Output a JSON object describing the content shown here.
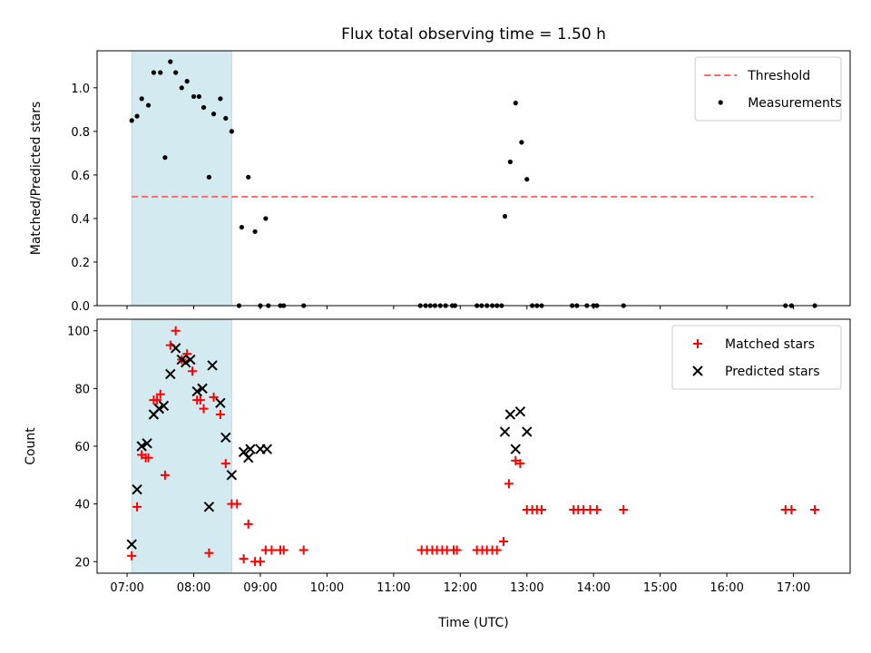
{
  "chart_data": {
    "title": "Flux total observing time = 1.50 h",
    "xlabel": "Time (UTC)",
    "xticks": [
      "07:00",
      "08:00",
      "09:00",
      "10:00",
      "11:00",
      "12:00",
      "13:00",
      "14:00",
      "15:00",
      "16:00",
      "17:00"
    ],
    "xlim": [
      6.55,
      17.85
    ],
    "highlight": {
      "x_start": 7.07,
      "x_end": 8.57,
      "color": "#d3eaf0"
    },
    "panels": [
      {
        "type": "scatter",
        "ylabel": "Matched/Predicted stars",
        "ylim": [
          0,
          1.17
        ],
        "yticks": [
          "0.0",
          "0.2",
          "0.4",
          "0.6",
          "0.8",
          "1.0"
        ],
        "legend_position": "top-right",
        "threshold": {
          "name": "Threshold",
          "y": 0.5,
          "x_start": 7.07,
          "x_end": 17.3,
          "color": "#ff6666"
        },
        "series": [
          {
            "name": "Measurements",
            "marker": "dot",
            "color": "#000000",
            "points": [
              [
                7.07,
                0.85
              ],
              [
                7.15,
                0.87
              ],
              [
                7.22,
                0.95
              ],
              [
                7.32,
                0.92
              ],
              [
                7.4,
                1.07
              ],
              [
                7.5,
                1.07
              ],
              [
                7.57,
                0.68
              ],
              [
                7.65,
                1.12
              ],
              [
                7.73,
                1.07
              ],
              [
                7.82,
                1.0
              ],
              [
                7.9,
                1.03
              ],
              [
                8.0,
                0.96
              ],
              [
                8.08,
                0.96
              ],
              [
                8.15,
                0.91
              ],
              [
                8.23,
                0.59
              ],
              [
                8.3,
                0.88
              ],
              [
                8.4,
                0.95
              ],
              [
                8.48,
                0.86
              ],
              [
                8.57,
                0.8
              ],
              [
                8.72,
                0.36
              ],
              [
                8.82,
                0.59
              ],
              [
                8.92,
                0.34
              ],
              [
                9.08,
                0.4
              ],
              [
                8.68,
                0.0
              ],
              [
                9.0,
                0.0
              ],
              [
                9.12,
                0.0
              ],
              [
                9.3,
                0.0
              ],
              [
                9.35,
                0.0
              ],
              [
                9.65,
                0.0
              ],
              [
                11.4,
                0.0
              ],
              [
                11.48,
                0.0
              ],
              [
                11.55,
                0.0
              ],
              [
                11.62,
                0.0
              ],
              [
                11.7,
                0.0
              ],
              [
                11.78,
                0.0
              ],
              [
                11.88,
                0.0
              ],
              [
                11.92,
                0.0
              ],
              [
                12.25,
                0.0
              ],
              [
                12.32,
                0.0
              ],
              [
                12.4,
                0.0
              ],
              [
                12.48,
                0.0
              ],
              [
                12.55,
                0.0
              ],
              [
                12.62,
                0.0
              ],
              [
                12.67,
                0.41
              ],
              [
                12.75,
                0.66
              ],
              [
                12.83,
                0.93
              ],
              [
                12.92,
                0.75
              ],
              [
                13.0,
                0.58
              ],
              [
                13.08,
                0.0
              ],
              [
                13.15,
                0.0
              ],
              [
                13.22,
                0.0
              ],
              [
                13.68,
                0.0
              ],
              [
                13.75,
                0.0
              ],
              [
                13.9,
                0.0
              ],
              [
                14.0,
                0.0
              ],
              [
                14.05,
                0.0
              ],
              [
                14.45,
                0.0
              ],
              [
                16.88,
                0.0
              ],
              [
                16.97,
                0.0
              ],
              [
                17.32,
                0.0
              ]
            ]
          }
        ]
      },
      {
        "type": "scatter",
        "ylabel": "Count",
        "ylim": [
          16,
          104
        ],
        "yticks": [
          "20",
          "40",
          "60",
          "80",
          "100"
        ],
        "legend_position": "top-right",
        "series": [
          {
            "name": "Matched stars",
            "marker": "plus",
            "color": "#ff0000",
            "points": [
              [
                7.07,
                22
              ],
              [
                7.15,
                39
              ],
              [
                7.22,
                57
              ],
              [
                7.28,
                56
              ],
              [
                7.32,
                56
              ],
              [
                7.4,
                76
              ],
              [
                7.45,
                76
              ],
              [
                7.5,
                78
              ],
              [
                7.57,
                50
              ],
              [
                7.65,
                95
              ],
              [
                7.73,
                100
              ],
              [
                7.82,
                90
              ],
              [
                7.9,
                92
              ],
              [
                7.98,
                86
              ],
              [
                8.05,
                76
              ],
              [
                8.1,
                76
              ],
              [
                8.15,
                73
              ],
              [
                8.23,
                23
              ],
              [
                8.3,
                77
              ],
              [
                8.4,
                71
              ],
              [
                8.48,
                54
              ],
              [
                8.57,
                40
              ],
              [
                8.65,
                40
              ],
              [
                8.75,
                21
              ],
              [
                8.82,
                33
              ],
              [
                8.92,
                20
              ],
              [
                9.0,
                20
              ],
              [
                9.08,
                24
              ],
              [
                9.17,
                24
              ],
              [
                9.3,
                24
              ],
              [
                9.35,
                24
              ],
              [
                9.65,
                24
              ],
              [
                11.42,
                24
              ],
              [
                11.5,
                24
              ],
              [
                11.58,
                24
              ],
              [
                11.65,
                24
              ],
              [
                11.73,
                24
              ],
              [
                11.8,
                24
              ],
              [
                11.9,
                24
              ],
              [
                11.95,
                24
              ],
              [
                12.25,
                24
              ],
              [
                12.33,
                24
              ],
              [
                12.4,
                24
              ],
              [
                12.48,
                24
              ],
              [
                12.55,
                24
              ],
              [
                12.65,
                27
              ],
              [
                12.73,
                47
              ],
              [
                12.83,
                55
              ],
              [
                12.9,
                54
              ],
              [
                13.0,
                38
              ],
              [
                13.08,
                38
              ],
              [
                13.15,
                38
              ],
              [
                13.22,
                38
              ],
              [
                13.7,
                38
              ],
              [
                13.77,
                38
              ],
              [
                13.85,
                38
              ],
              [
                13.95,
                38
              ],
              [
                14.05,
                38
              ],
              [
                14.45,
                38
              ],
              [
                16.88,
                38
              ],
              [
                16.97,
                38
              ],
              [
                17.32,
                38
              ]
            ]
          },
          {
            "name": "Predicted stars",
            "marker": "x",
            "color": "#000000",
            "points": [
              [
                7.07,
                26
              ],
              [
                7.15,
                45
              ],
              [
                7.22,
                60
              ],
              [
                7.3,
                61
              ],
              [
                7.4,
                71
              ],
              [
                7.48,
                73
              ],
              [
                7.55,
                74
              ],
              [
                7.65,
                85
              ],
              [
                7.73,
                94
              ],
              [
                7.82,
                90
              ],
              [
                7.88,
                89
              ],
              [
                7.95,
                90
              ],
              [
                8.05,
                79
              ],
              [
                8.13,
                80
              ],
              [
                8.23,
                39
              ],
              [
                8.28,
                88
              ],
              [
                8.4,
                75
              ],
              [
                8.48,
                63
              ],
              [
                8.57,
                50
              ],
              [
                8.75,
                58
              ],
              [
                8.82,
                56
              ],
              [
                8.85,
                59
              ],
              [
                9.0,
                59
              ],
              [
                9.1,
                59
              ],
              [
                12.67,
                65
              ],
              [
                12.75,
                71
              ],
              [
                12.83,
                59
              ],
              [
                12.9,
                72
              ],
              [
                13.0,
                65
              ]
            ]
          }
        ]
      }
    ]
  }
}
